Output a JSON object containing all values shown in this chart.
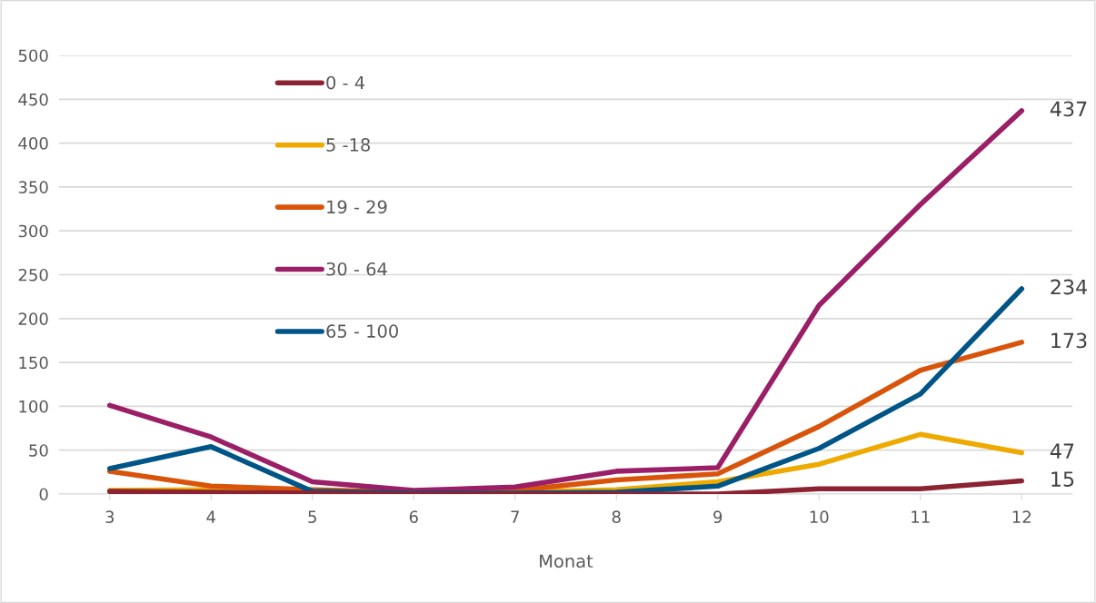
{
  "chart_data": {
    "type": "line",
    "xlabel": "Monat",
    "categories": [
      "3",
      "4",
      "5",
      "6",
      "7",
      "8",
      "9",
      "10",
      "11",
      "12"
    ],
    "series": [
      {
        "name": "0 - 4",
        "color": "#8b2332",
        "values": [
          3,
          2,
          1,
          0,
          0,
          0,
          0,
          6,
          6,
          15
        ],
        "value_labels": [
          null,
          null,
          null,
          null,
          null,
          null,
          null,
          null,
          null,
          "15"
        ]
      },
      {
        "name": "5 -18",
        "color": "#eeaa00",
        "values": [
          4,
          5,
          2,
          1,
          2,
          5,
          14,
          34,
          68,
          47
        ],
        "value_labels": [
          null,
          null,
          null,
          null,
          null,
          null,
          null,
          null,
          null,
          "47"
        ]
      },
      {
        "name": "19 - 29",
        "color": "#d9540b",
        "values": [
          26,
          9,
          5,
          2,
          4,
          16,
          23,
          77,
          141,
          173
        ],
        "value_labels": [
          null,
          null,
          null,
          null,
          null,
          null,
          null,
          null,
          null,
          "173"
        ]
      },
      {
        "name": "30 - 64",
        "color": "#9b1f66",
        "values": [
          101,
          65,
          14,
          4,
          8,
          26,
          30,
          215,
          330,
          437
        ],
        "value_labels": [
          null,
          null,
          null,
          null,
          null,
          null,
          null,
          null,
          null,
          "437"
        ]
      },
      {
        "name": "65 - 100",
        "color": "#005587",
        "values": [
          29,
          54,
          3,
          1,
          1,
          2,
          9,
          52,
          114,
          234
        ],
        "value_labels": [
          null,
          null,
          null,
          null,
          null,
          null,
          null,
          null,
          null,
          "234"
        ]
      }
    ],
    "ylim": [
      0,
      500
    ],
    "yticks": [
      0,
      50,
      100,
      150,
      200,
      250,
      300,
      350,
      400,
      450,
      500
    ],
    "grid": "y",
    "legend": "top left",
    "marker": "none",
    "line_style": "solid"
  }
}
